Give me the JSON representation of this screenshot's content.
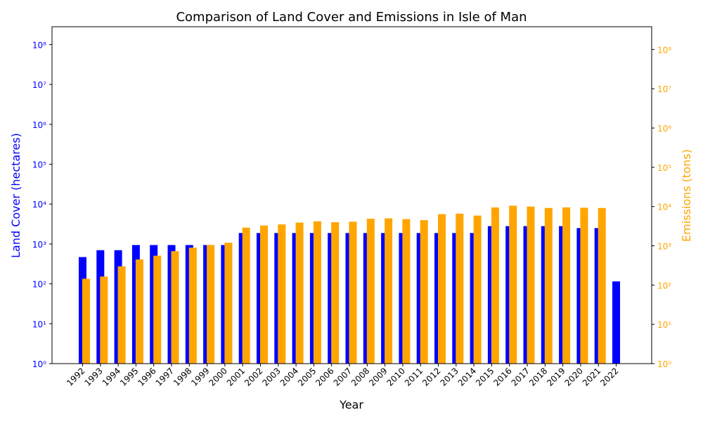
{
  "chart_data": {
    "type": "bar",
    "title": "Comparison of Land Cover and Emissions in Isle of Man",
    "xlabel": "Year",
    "ylabel_left": "Land Cover (hectares)",
    "ylabel_right": "Emissions (tons)",
    "yscale": "log",
    "ylim_left": [
      1,
      280000000
    ],
    "ylim_right": [
      1,
      380000000
    ],
    "y_ticks": [
      1,
      10,
      100,
      1000,
      10000,
      100000,
      1000000,
      10000000,
      100000000
    ],
    "y_tick_labels": [
      "10⁰",
      "10¹",
      "10²",
      "10³",
      "10⁴",
      "10⁵",
      "10⁶",
      "10⁷",
      "10⁸"
    ],
    "legend": "none",
    "grid": false,
    "categories": [
      "1992",
      "1993",
      "1994",
      "1995",
      "1996",
      "1997",
      "1998",
      "1999",
      "2000",
      "2001",
      "2002",
      "2003",
      "2004",
      "2005",
      "2006",
      "2007",
      "2008",
      "2009",
      "2010",
      "2011",
      "2012",
      "2013",
      "2014",
      "2015",
      "2016",
      "2017",
      "2018",
      "2019",
      "2020",
      "2021",
      "2022"
    ],
    "series": [
      {
        "axis": "left",
        "color": "#0000ff",
        "values": [
          470,
          700,
          700,
          940,
          940,
          940,
          940,
          940,
          940,
          1880,
          1880,
          1880,
          1880,
          1880,
          1880,
          1880,
          1880,
          1880,
          1880,
          1880,
          1880,
          1880,
          1880,
          2800,
          2800,
          2800,
          2800,
          2800,
          2500,
          2500,
          115
        ]
      },
      {
        "axis": "right",
        "color": "#ffa500",
        "values": [
          145,
          165,
          300,
          450,
          560,
          730,
          900,
          1050,
          1200,
          2900,
          3300,
          3500,
          3900,
          4200,
          4000,
          4100,
          4900,
          5000,
          4800,
          4500,
          6400,
          6600,
          5900,
          9500,
          10500,
          10000,
          9200,
          9500,
          9300,
          9200,
          null
        ]
      }
    ],
    "colors": {
      "left_axis": "#0000ff",
      "right_axis": "#ffa500",
      "text": "#000000"
    }
  }
}
